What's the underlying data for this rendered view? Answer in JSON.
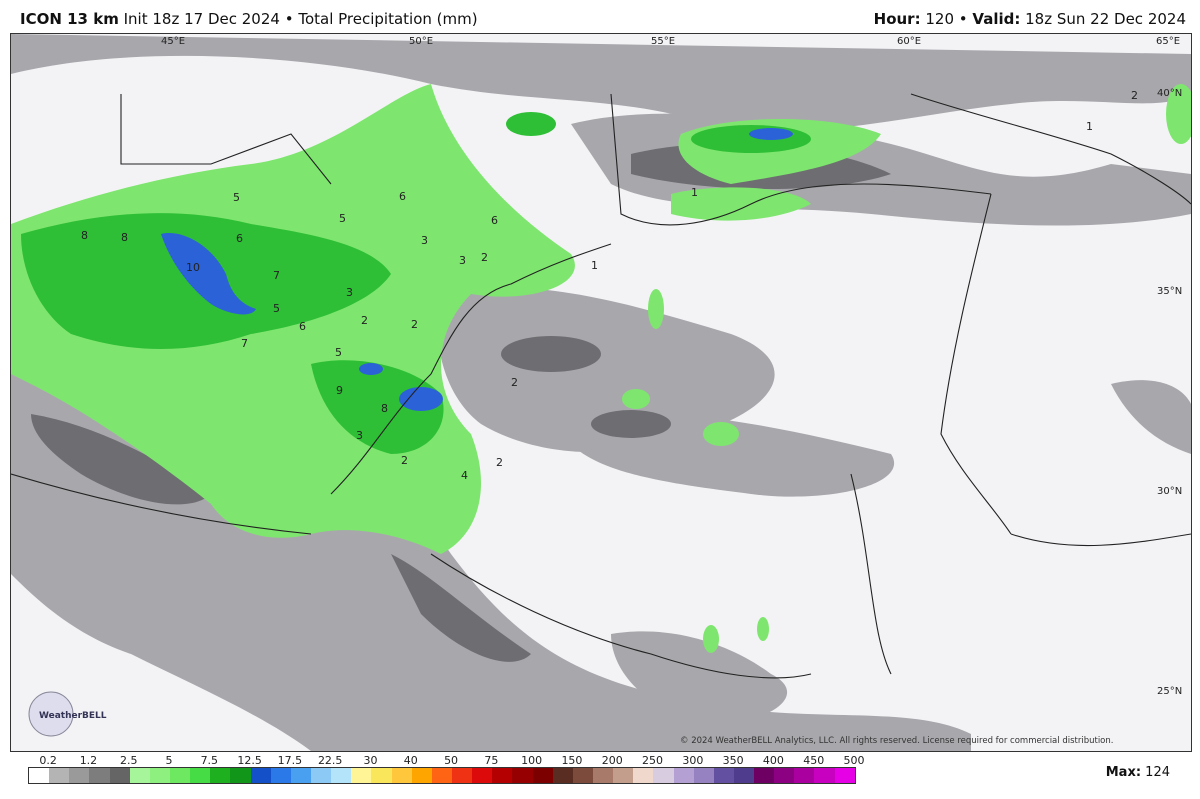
{
  "header": {
    "model": "ICON 13 km",
    "init": "Init 18z 17 Dec 2024",
    "sep": "•",
    "field": "Total Precipitation (mm)",
    "hour_label": "Hour:",
    "hour": "120",
    "valid_label": "Valid:",
    "valid": "18z Sun 22 Dec 2024"
  },
  "map": {
    "lon_labels": [
      "45°E",
      "50°E",
      "55°E",
      "60°E",
      "65°E"
    ],
    "lat_labels": [
      "40°N",
      "35°N",
      "30°N",
      "25°N"
    ],
    "contour_labels": [
      "8",
      "8",
      "10",
      "6",
      "7",
      "5",
      "5",
      "6",
      "3",
      "6",
      "3",
      "2",
      "5",
      "6",
      "7",
      "3",
      "2",
      "2",
      "5",
      "9",
      "8",
      "3",
      "2",
      "4",
      "2",
      "1",
      "1",
      "2",
      "2",
      "1"
    ],
    "logo": "WeatherBELL",
    "copyright": "© 2024 WeatherBELL Analytics, LLC. All rights reserved. License required for commercial distribution."
  },
  "colorbar": {
    "labels": [
      "0.2",
      "1.2",
      "2.5",
      "5",
      "7.5",
      "12.5",
      "17.5",
      "22.5",
      "30",
      "40",
      "50",
      "75",
      "100",
      "150",
      "200",
      "250",
      "300",
      "350",
      "400",
      "450",
      "500"
    ],
    "colors": [
      "#ffffff",
      "#b4b4b4",
      "#9a9a9a",
      "#7d7d7d",
      "#656565",
      "#a6f59a",
      "#8ef07e",
      "#6ee860",
      "#46dc46",
      "#1fb01f",
      "#11961a",
      "#1450c8",
      "#2b78e8",
      "#4aa0f0",
      "#8ccaf5",
      "#b4e4fa",
      "#fff596",
      "#fae65a",
      "#ffc83c",
      "#ffa500",
      "#ff6414",
      "#f03214",
      "#dc0a0a",
      "#b40000",
      "#960000",
      "#7d0000",
      "#5a2d23",
      "#7d4b3c",
      "#a87a6a",
      "#c39e8c",
      "#f0d8cc",
      "#d8cce0",
      "#b4a0d2",
      "#9682c0",
      "#6450a0",
      "#503c8c",
      "#6e0064",
      "#8c0082",
      "#aa00a0",
      "#c800c0",
      "#e600e6"
    ]
  },
  "max": {
    "label": "Max:",
    "value": "124"
  }
}
